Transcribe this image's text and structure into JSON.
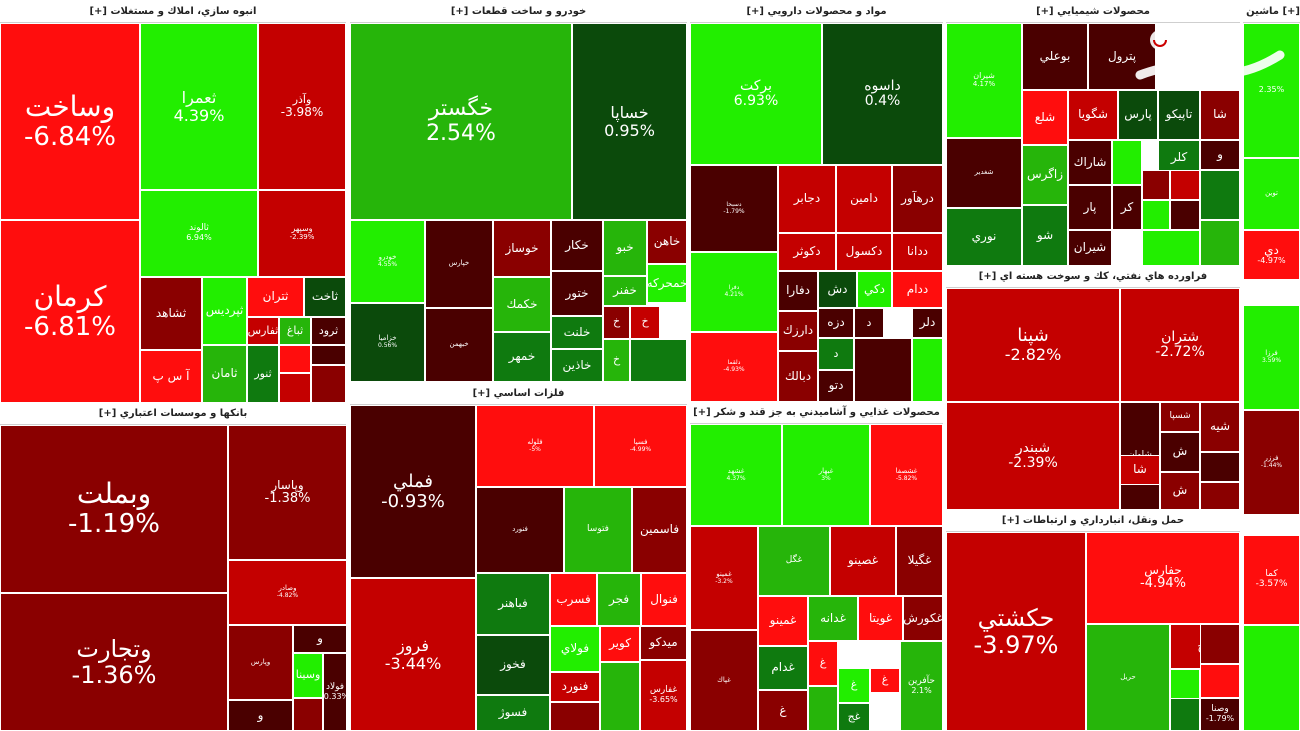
{
  "colors": {
    "neg_strong": "#ff0d0d",
    "neg_mid": "#c40000",
    "neg_dark": "#8a0000",
    "neg_deep": "#4a0000",
    "pos_strong": "#22ee00",
    "pos_mid": "#26b50a",
    "pos_dark": "#0f7a0f",
    "pos_deep": "#0b4a0b",
    "neutral": "#5a0000"
  },
  "sectors": [
    {
      "name": "انبوه سازي، املاك و مستغلات [+]"
    },
    {
      "name": "خودرو و ساخت قطعات [+]"
    },
    {
      "name": "مواد و محصولات دارويي [+]"
    },
    {
      "name": "محصولات شيميايي [+]"
    },
    {
      "name": "[+] ماشين آلات"
    },
    {
      "name": "بانكها و موسسات اعتباري [+]"
    },
    {
      "name": "فلزات اساسي [+]"
    },
    {
      "name": "فراورده هاي نفتي، كك و سوخت هسته اي [+]"
    },
    {
      "name": "محصولات غذايي و آشاميدني به جز قند و شكر [+]"
    },
    {
      "name": "حمل ونقل، انبارداري و ارتباطات [+]"
    }
  ],
  "tiles": [
    {
      "sym": "وساخت",
      "pct": "-6.84%",
      "c": "neg_strong"
    },
    {
      "sym": "كرمان",
      "pct": "-6.81%",
      "c": "neg_strong"
    },
    {
      "sym": "ثعمرا",
      "pct": "4.39%",
      "c": "pos_strong"
    },
    {
      "sym": "وآذر",
      "pct": "-3.98%",
      "c": "neg_mid"
    },
    {
      "sym": "ثالوند",
      "pct": "6.94%",
      "c": "pos_strong"
    },
    {
      "sym": "وسپهر",
      "pct": "-2.39%",
      "c": "neg_mid"
    },
    {
      "sym": "ثشاهد",
      "pct": "",
      "c": "neg_dark"
    },
    {
      "sym": "آ س پ",
      "pct": "",
      "c": "neg_strong"
    },
    {
      "sym": "ثپرديس",
      "pct": "",
      "c": "pos_strong"
    },
    {
      "sym": "ثامان",
      "pct": "",
      "c": "pos_mid"
    },
    {
      "sym": "ثتران",
      "pct": "",
      "c": "neg_strong"
    },
    {
      "sym": "ثاخت",
      "pct": "",
      "c": "pos_deep"
    },
    {
      "sym": "ثفارس",
      "pct": "",
      "c": "neg_mid"
    },
    {
      "sym": "ثباغ",
      "pct": "",
      "c": "pos_mid"
    },
    {
      "sym": "ثرود",
      "pct": "",
      "c": "neg_deep"
    },
    {
      "sym": "ثنور",
      "pct": "",
      "c": "pos_dark"
    },
    {
      "sym": "",
      "pct": "",
      "c": "neg_strong"
    },
    {
      "sym": "",
      "pct": "",
      "c": "neg_deep"
    },
    {
      "sym": "",
      "pct": "",
      "c": "neg_dark"
    },
    {
      "sym": "",
      "pct": "",
      "c": "neg_mid"
    },
    {
      "sym": "خگستر",
      "pct": "2.54%",
      "c": "pos_mid"
    },
    {
      "sym": "خساپا",
      "pct": "0.95%",
      "c": "pos_deep"
    },
    {
      "sym": "خودرو",
      "pct": "4.55%",
      "c": "pos_strong"
    },
    {
      "sym": "خپارس",
      "pct": "",
      "c": "neg_deep"
    },
    {
      "sym": "خزامیا",
      "pct": "0.56%",
      "c": "pos_deep"
    },
    {
      "sym": "خبهمن",
      "pct": "",
      "c": "neg_deep"
    },
    {
      "sym": "خوساز",
      "pct": "",
      "c": "neg_dark"
    },
    {
      "sym": "خكمك",
      "pct": "",
      "c": "pos_mid"
    },
    {
      "sym": "خمهر",
      "pct": "",
      "c": "pos_dark"
    },
    {
      "sym": "خكار",
      "pct": "",
      "c": "neg_deep"
    },
    {
      "sym": "ختور",
      "pct": "",
      "c": "neg_deep"
    },
    {
      "sym": "خلنت",
      "pct": "",
      "c": "pos_dark"
    },
    {
      "sym": "خاذين",
      "pct": "",
      "c": "pos_dark"
    },
    {
      "sym": "خاهن",
      "pct": "",
      "c": "neg_dark"
    },
    {
      "sym": "خبو",
      "pct": "",
      "c": "pos_mid"
    },
    {
      "sym": "خمحرکه",
      "pct": "",
      "c": "pos_strong"
    },
    {
      "sym": "خفنر",
      "pct": "",
      "c": "pos_mid"
    },
    {
      "sym": "خ",
      "pct": "",
      "c": "neg_dark"
    },
    {
      "sym": "خ",
      "pct": "",
      "c": "neg_mid"
    },
    {
      "sym": "خ",
      "pct": "",
      "c": "pos_mid"
    },
    {
      "sym": "",
      "pct": "",
      "c": "pos_dark"
    },
    {
      "sym": "بركت",
      "pct": "6.93%",
      "c": "pos_strong"
    },
    {
      "sym": "داسوه",
      "pct": "0.4%",
      "c": "pos_deep"
    },
    {
      "sym": "دسبحا",
      "pct": "-1.79%",
      "c": "neg_deep"
    },
    {
      "sym": "دجابر",
      "pct": "",
      "c": "neg_mid"
    },
    {
      "sym": "دامين",
      "pct": "",
      "c": "neg_mid"
    },
    {
      "sym": "درهآور",
      "pct": "",
      "c": "neg_dark"
    },
    {
      "sym": "دكوثر",
      "pct": "",
      "c": "neg_mid"
    },
    {
      "sym": "دكسول",
      "pct": "",
      "c": "neg_mid"
    },
    {
      "sym": "ددانا",
      "pct": "",
      "c": "neg_mid"
    },
    {
      "sym": "دفرا",
      "pct": "4.21%",
      "c": "pos_strong"
    },
    {
      "sym": "دلقما",
      "pct": "-4.93%",
      "c": "neg_strong"
    },
    {
      "sym": "دفارا",
      "pct": "",
      "c": "neg_deep"
    },
    {
      "sym": "دارزك",
      "pct": "",
      "c": "neg_dark"
    },
    {
      "sym": "دبالك",
      "pct": "",
      "c": "neg_dark"
    },
    {
      "sym": "ددام",
      "pct": "",
      "c": "neg_strong"
    },
    {
      "sym": "دش",
      "pct": "",
      "c": "pos_deep"
    },
    {
      "sym": "دكي",
      "pct": "",
      "c": "pos_strong"
    },
    {
      "sym": "دزه",
      "pct": "",
      "c": "neg_deep"
    },
    {
      "sym": "دلر",
      "pct": "",
      "c": "neg_deep"
    },
    {
      "sym": "دتو",
      "pct": "",
      "c": "neg_deep"
    },
    {
      "sym": "د",
      "pct": "",
      "c": "neg_deep"
    },
    {
      "sym": "د",
      "pct": "",
      "c": "pos_dark"
    },
    {
      "sym": "",
      "pct": "",
      "c": "neg_deep"
    },
    {
      "sym": "",
      "pct": "",
      "c": "pos_strong"
    },
    {
      "sym": "شپنا",
      "pct": "-2.82%",
      "c": "neg_mid"
    },
    {
      "sym": "شتران",
      "pct": "-2.72%",
      "c": "neg_mid"
    },
    {
      "sym": "شبندر",
      "pct": "-2.39%",
      "c": "neg_mid"
    },
    {
      "sym": "شاوان",
      "pct": "",
      "c": "neg_deep"
    },
    {
      "sym": "شسپا",
      "pct": "",
      "c": "neg_dark"
    },
    {
      "sym": "شيه",
      "pct": "",
      "c": "neg_dark"
    },
    {
      "sym": "ش",
      "pct": "",
      "c": "neg_deep"
    },
    {
      "sym": "شا",
      "pct": "",
      "c": "neg_mid"
    },
    {
      "sym": "ش",
      "pct": "",
      "c": "neg_dark"
    },
    {
      "sym": "",
      "pct": "",
      "c": "neg_deep"
    },
    {
      "sym": "",
      "pct": "",
      "c": "neg_dark"
    },
    {
      "sym": "شيران",
      "pct": "4.17%",
      "c": "pos_strong"
    },
    {
      "sym": "شغدير",
      "pct": "",
      "c": "neg_deep"
    },
    {
      "sym": "نوري",
      "pct": "",
      "c": "pos_dark"
    },
    {
      "sym": "بوعلي",
      "pct": "",
      "c": "neg_deep"
    },
    {
      "sym": "پترول",
      "pct": "",
      "c": "neg_deep"
    },
    {
      "sym": "شلع",
      "pct": "",
      "c": "neg_strong"
    },
    {
      "sym": "شگويا",
      "pct": "",
      "c": "neg_mid"
    },
    {
      "sym": "پارس",
      "pct": "",
      "c": "pos_deep"
    },
    {
      "sym": "تاپيكو",
      "pct": "",
      "c": "pos_deep"
    },
    {
      "sym": "شا",
      "pct": "",
      "c": "neg_dark"
    },
    {
      "sym": "زاگرس",
      "pct": "",
      "c": "pos_mid"
    },
    {
      "sym": "شاراك",
      "pct": "",
      "c": "neg_deep"
    },
    {
      "sym": "كلر",
      "pct": "",
      "c": "pos_dark"
    },
    {
      "sym": "و",
      "pct": "",
      "c": "neg_deep"
    },
    {
      "sym": "شو",
      "pct": "",
      "c": "pos_dark"
    },
    {
      "sym": "پار",
      "pct": "",
      "c": "neg_deep"
    },
    {
      "sym": "كر",
      "pct": "",
      "c": "neg_deep"
    },
    {
      "sym": "شيران",
      "pct": "",
      "c": "neg_deep"
    },
    {
      "sym": "",
      "pct": "",
      "c": "pos_strong"
    },
    {
      "sym": "",
      "pct": "",
      "c": "neg_dark"
    },
    {
      "sym": "",
      "pct": "",
      "c": "neg_mid"
    },
    {
      "sym": "",
      "pct": "",
      "c": "pos_dark"
    },
    {
      "sym": "",
      "pct": "",
      "c": "pos_strong"
    },
    {
      "sym": "",
      "pct": "",
      "c": "neg_deep"
    },
    {
      "sym": "",
      "pct": "",
      "c": "pos_strong"
    },
    {
      "sym": "",
      "pct": "",
      "c": "pos_mid"
    },
    {
      "sym": "",
      "pct": "2.35%",
      "c": "pos_strong"
    },
    {
      "sym": "توين",
      "pct": "",
      "c": "pos_strong"
    },
    {
      "sym": "دي",
      "pct": "-4.97%",
      "c": "neg_strong"
    },
    {
      "sym": "وبملت",
      "pct": "-1.19%",
      "c": "neg_dark"
    },
    {
      "sym": "وتجارت",
      "pct": "-1.36%",
      "c": "neg_dark"
    },
    {
      "sym": "وپاسار",
      "pct": "-1.38%",
      "c": "neg_dark"
    },
    {
      "sym": "وصادر",
      "pct": "-4.82%",
      "c": "neg_mid"
    },
    {
      "sym": "وپارس",
      "pct": "",
      "c": "neg_dark"
    },
    {
      "sym": "و",
      "pct": "",
      "c": "neg_deep"
    },
    {
      "sym": "وسينا",
      "pct": "",
      "c": "pos_strong"
    },
    {
      "sym": "و",
      "pct": "",
      "c": "neg_deep"
    },
    {
      "sym": "",
      "pct": "",
      "c": "neg_dark"
    },
    {
      "sym": "فولاد",
      "pct": "-0.33%",
      "c": "neg_deep"
    },
    {
      "sym": "فملي",
      "pct": "-0.93%",
      "c": "neg_deep"
    },
    {
      "sym": "فروز",
      "pct": "-3.44%",
      "c": "neg_mid"
    },
    {
      "sym": "فلوله",
      "pct": "-5%",
      "c": "neg_strong"
    },
    {
      "sym": "فسپا",
      "pct": "-4.99%",
      "c": "neg_strong"
    },
    {
      "sym": "فنورد",
      "pct": "",
      "c": "neg_deep"
    },
    {
      "sym": "فتوسا",
      "pct": "",
      "c": "pos_mid"
    },
    {
      "sym": "فاسمين",
      "pct": "",
      "c": "neg_dark"
    },
    {
      "sym": "فباهنر",
      "pct": "",
      "c": "pos_dark"
    },
    {
      "sym": "فسرب",
      "pct": "",
      "c": "neg_strong"
    },
    {
      "sym": "فجر",
      "pct": "",
      "c": "pos_mid"
    },
    {
      "sym": "فنوال",
      "pct": "",
      "c": "neg_strong"
    },
    {
      "sym": "فولاي",
      "pct": "",
      "c": "pos_strong"
    },
    {
      "sym": "كوير",
      "pct": "",
      "c": "neg_strong"
    },
    {
      "sym": "ميدكو",
      "pct": "",
      "c": "neg_dark"
    },
    {
      "sym": "فخوز",
      "pct": "",
      "c": "pos_deep"
    },
    {
      "sym": "فنورد",
      "pct": "",
      "c": "neg_mid"
    },
    {
      "sym": "فسوژ",
      "pct": "",
      "c": "pos_dark"
    },
    {
      "sym": "",
      "pct": "",
      "c": "neg_dark"
    },
    {
      "sym": "",
      "pct": "",
      "c": "pos_mid"
    },
    {
      "sym": "غفارس",
      "pct": "-3.65%",
      "c": "neg_mid"
    },
    {
      "sym": "غشهد",
      "pct": "4.37%",
      "c": "pos_strong"
    },
    {
      "sym": "غبهار",
      "pct": "3%",
      "c": "pos_strong"
    },
    {
      "sym": "غشصفا",
      "pct": "-5.82%",
      "c": "neg_strong"
    },
    {
      "sym": "غمينو",
      "pct": "-3.2%",
      "c": "neg_mid"
    },
    {
      "sym": "غپاك",
      "pct": "",
      "c": "neg_dark"
    },
    {
      "sym": "غگل",
      "pct": "",
      "c": "pos_mid"
    },
    {
      "sym": "غصينو",
      "pct": "",
      "c": "neg_mid"
    },
    {
      "sym": "غگيلا",
      "pct": "",
      "c": "neg_dark"
    },
    {
      "sym": "غمينو",
      "pct": "",
      "c": "neg_strong"
    },
    {
      "sym": "غدانه",
      "pct": "",
      "c": "pos_mid"
    },
    {
      "sym": "غويتا",
      "pct": "",
      "c": "neg_strong"
    },
    {
      "sym": "غكورش",
      "pct": "",
      "c": "neg_dark"
    },
    {
      "sym": "غدام",
      "pct": "",
      "c": "pos_dark"
    },
    {
      "sym": "غ",
      "pct": "",
      "c": "neg_dark"
    },
    {
      "sym": "غ",
      "pct": "",
      "c": "neg_strong"
    },
    {
      "sym": "غ",
      "pct": "",
      "c": "pos_strong"
    },
    {
      "sym": "غج",
      "pct": "",
      "c": "pos_dark"
    },
    {
      "sym": "غ",
      "pct": "",
      "c": "neg_strong"
    },
    {
      "sym": "",
      "pct": "",
      "c": "pos_mid"
    },
    {
      "sym": "حآفرين",
      "pct": "2.1%",
      "c": "pos_mid"
    },
    {
      "sym": "حكشتي",
      "pct": "-3.97%",
      "c": "neg_mid"
    },
    {
      "sym": "حفارس",
      "pct": "-4.94%",
      "c": "neg_strong"
    },
    {
      "sym": "حريل",
      "pct": "",
      "c": "pos_mid"
    },
    {
      "sym": "حح",
      "pct": "",
      "c": "neg_mid"
    },
    {
      "sym": "",
      "pct": "",
      "c": "pos_strong"
    },
    {
      "sym": "",
      "pct": "",
      "c": "neg_dark"
    },
    {
      "sym": "",
      "pct": "",
      "c": "neg_strong"
    },
    {
      "sym": "",
      "pct": "",
      "c": "pos_dark"
    },
    {
      "sym": "وصنا",
      "pct": "-1.79%",
      "c": "neg_deep"
    },
    {
      "sym": "فرزا",
      "pct": "3.59%",
      "c": "pos_strong"
    },
    {
      "sym": "فرزر",
      "pct": "-1.44%",
      "c": "neg_dark"
    },
    {
      "sym": "كما",
      "pct": "-3.57%",
      "c": "neg_strong"
    },
    {
      "sym": "",
      "pct": "",
      "c": "pos_strong"
    }
  ]
}
